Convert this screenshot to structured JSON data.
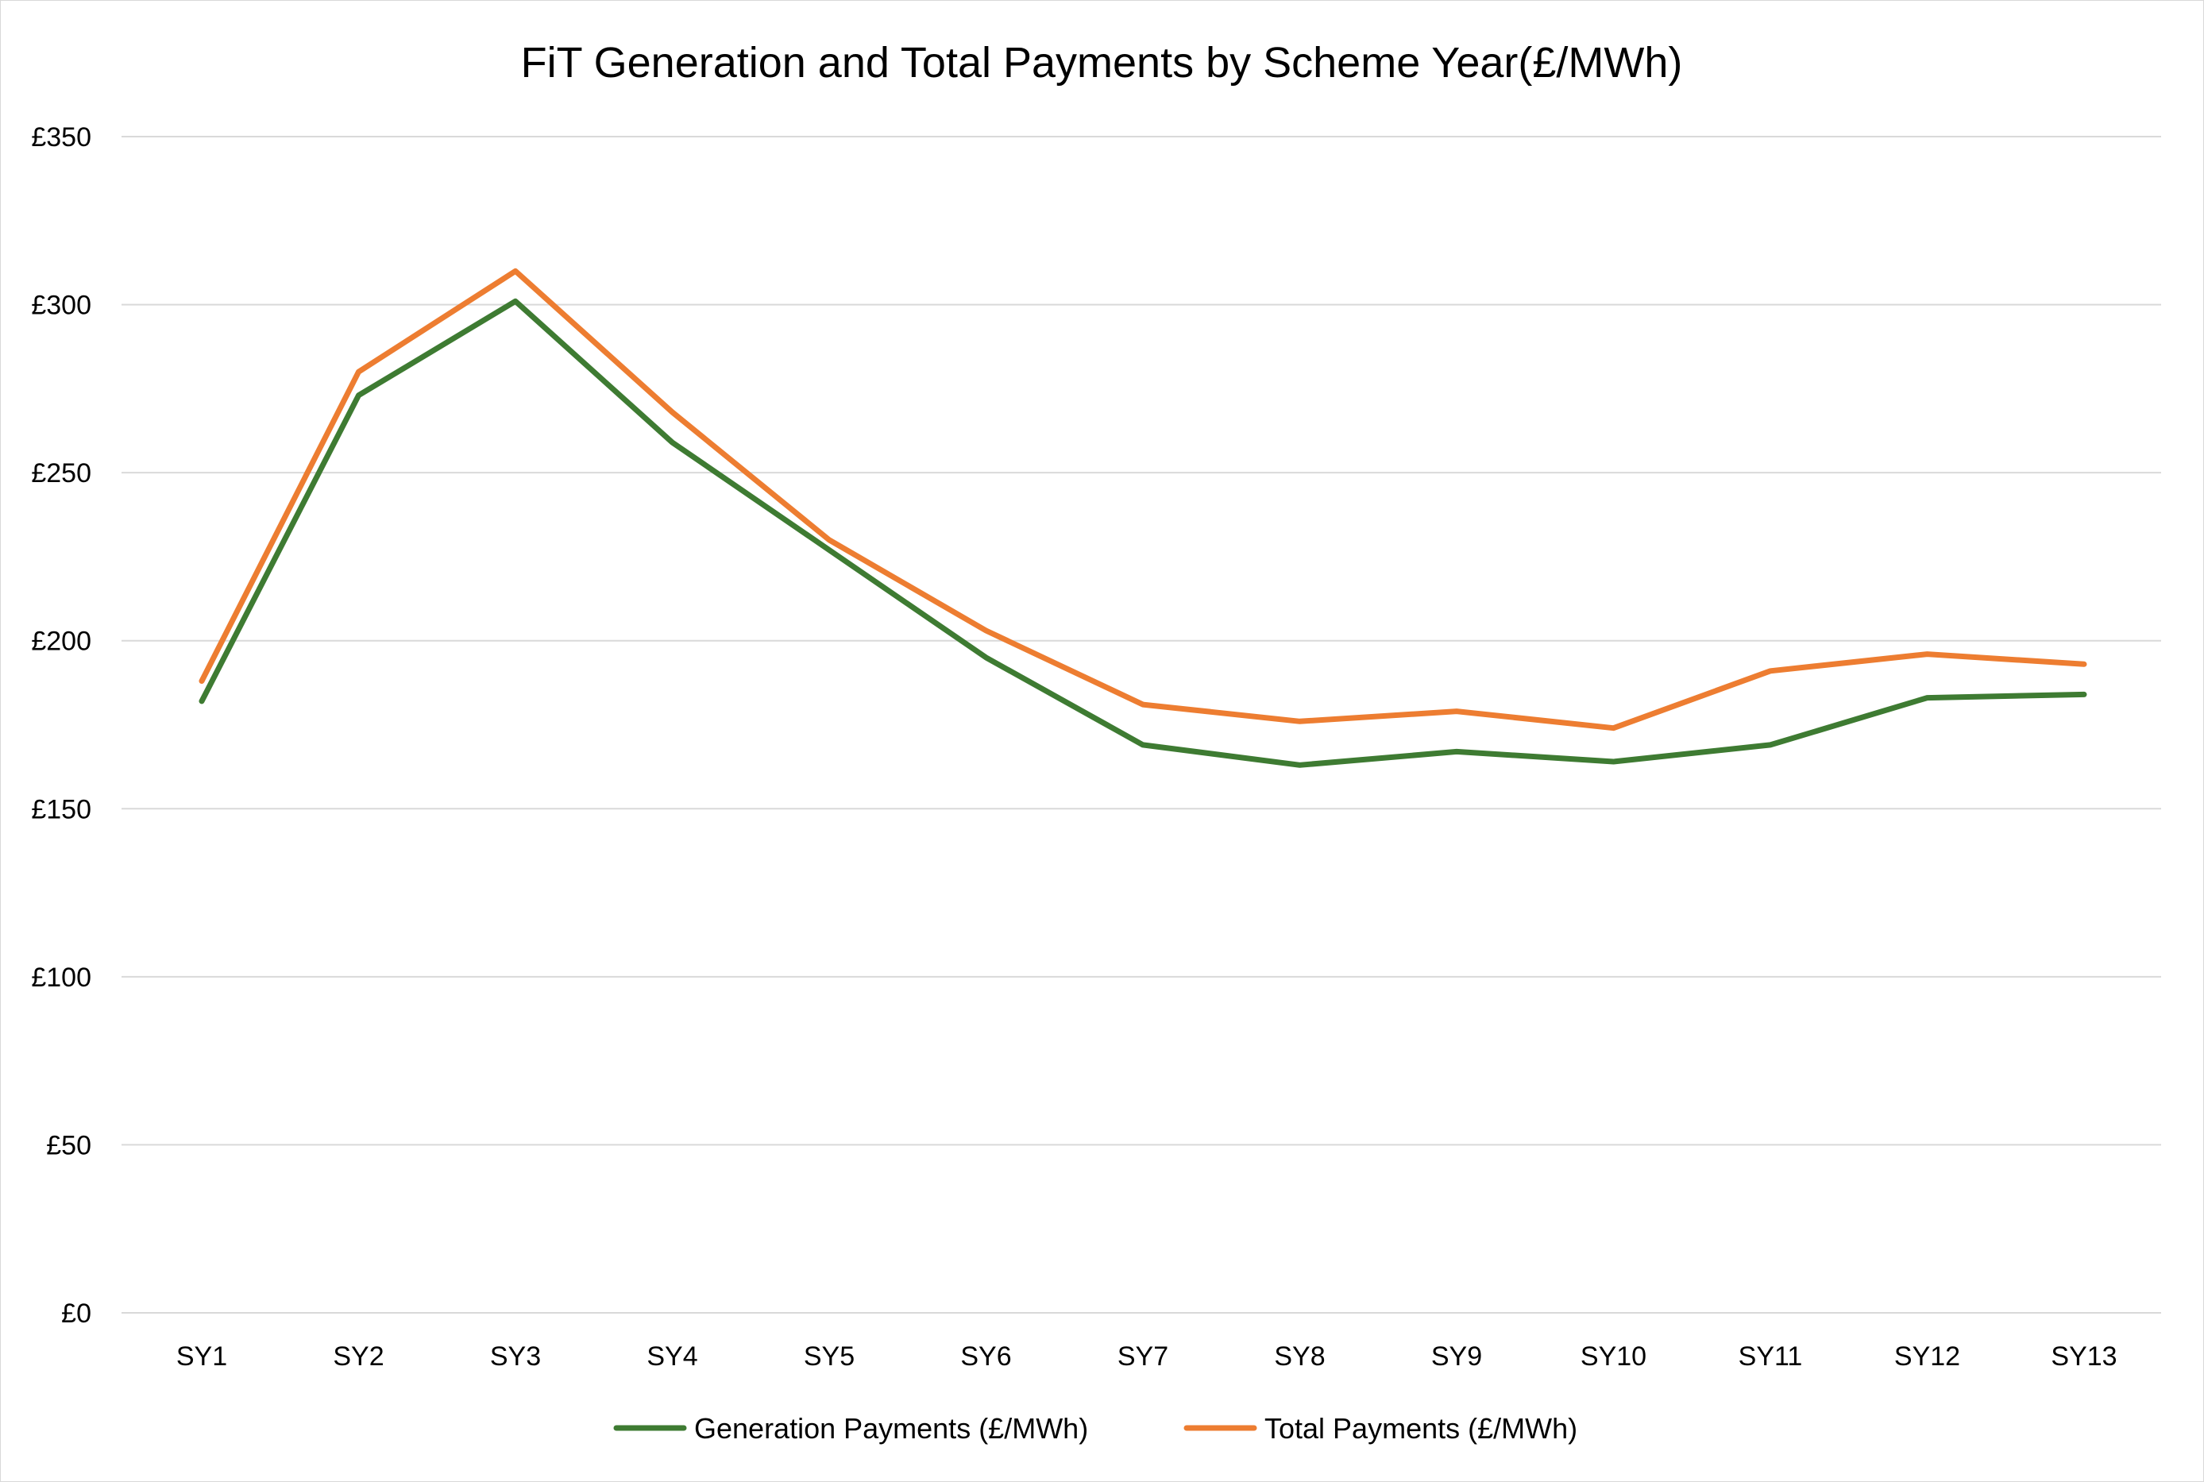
{
  "chart_data": {
    "type": "line",
    "title": "FiT Generation and Total Payments by Scheme Year(£/MWh)",
    "xlabel": "",
    "ylabel": "",
    "categories": [
      "SY1",
      "SY2",
      "SY3",
      "SY4",
      "SY5",
      "SY6",
      "SY7",
      "SY8",
      "SY9",
      "SY10",
      "SY11",
      "SY12",
      "SY13"
    ],
    "ylim": [
      0,
      350
    ],
    "yticks": [
      0,
      50,
      100,
      150,
      200,
      250,
      300,
      350
    ],
    "ytick_labels": [
      "£0",
      "£50",
      "£100",
      "£150",
      "£200",
      "£250",
      "£300",
      "£350"
    ],
    "grid": true,
    "legend_position": "bottom",
    "series": [
      {
        "name": "Generation Payments (£/MWh)",
        "color": "#3e7b32",
        "values": [
          182,
          273,
          301,
          259,
          227,
          195,
          169,
          163,
          167,
          164,
          169,
          183,
          184
        ]
      },
      {
        "name": "Total Payments (£/MWh)",
        "color": "#ed7d31",
        "values": [
          188,
          280,
          310,
          268,
          230,
          203,
          181,
          176,
          179,
          174,
          191,
          196,
          193
        ]
      }
    ]
  }
}
